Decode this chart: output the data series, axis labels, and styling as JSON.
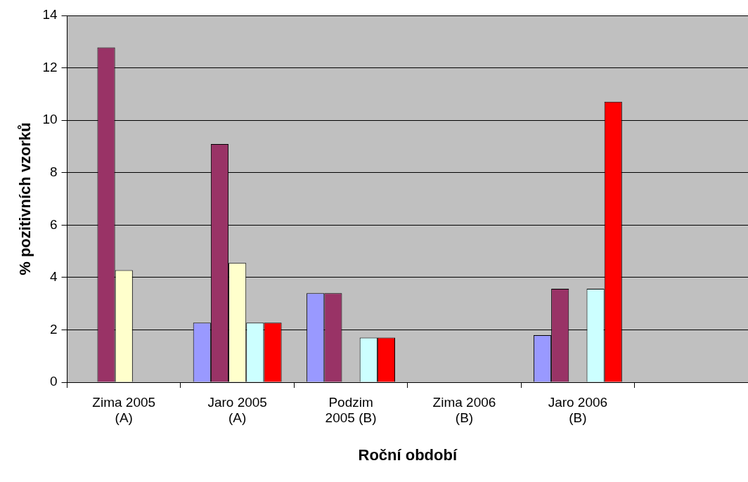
{
  "chart_data": {
    "type": "bar",
    "xlabel": "Roční období",
    "ylabel": "% pozitivních vzorků",
    "categories": [
      "Zima 2005 (A)",
      "Jaro 2005 (A)",
      "Podzim 2005 (B)",
      "Zima 2006 (B)",
      "Jaro 2006 (B)",
      null
    ],
    "series": [
      {
        "color": "#9999ff",
        "values": [
          0,
          2.27,
          3.4,
          0,
          1.8,
          null
        ]
      },
      {
        "color": "#993366",
        "values": [
          12.78,
          9.09,
          3.4,
          0,
          3.57,
          null
        ]
      },
      {
        "color": "#ffffcc",
        "values": [
          4.28,
          4.55,
          0,
          0,
          0,
          null
        ]
      },
      {
        "color": "#ccffff",
        "values": [
          0,
          2.27,
          1.7,
          0,
          3.57,
          null
        ]
      },
      {
        "color": "#ff0000",
        "values": [
          0,
          2.27,
          1.7,
          0,
          10.71,
          null
        ]
      }
    ],
    "ylim": [
      0,
      14
    ],
    "yticks": [
      0,
      2,
      4,
      6,
      8,
      10,
      12,
      14
    ],
    "grid": "y",
    "legend": false
  }
}
